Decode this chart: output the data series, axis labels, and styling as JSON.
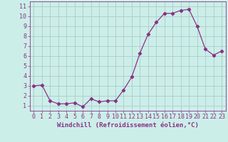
{
  "x": [
    0,
    1,
    2,
    3,
    4,
    5,
    6,
    7,
    8,
    9,
    10,
    11,
    12,
    13,
    14,
    15,
    16,
    17,
    18,
    19,
    20,
    21,
    22,
    23
  ],
  "y": [
    3.0,
    3.1,
    1.5,
    1.2,
    1.2,
    1.3,
    0.9,
    1.7,
    1.4,
    1.5,
    1.5,
    2.6,
    3.9,
    6.3,
    8.2,
    9.4,
    10.3,
    10.3,
    10.6,
    10.7,
    9.0,
    6.7,
    6.1,
    6.5
  ],
  "line_color": "#883388",
  "marker": "D",
  "marker_size": 2.2,
  "bg_color": "#cceee8",
  "grid_color": "#aacccc",
  "tick_color": "#883388",
  "label_color": "#883388",
  "xlabel": "Windchill (Refroidissement éolien,°C)",
  "ylim": [
    0.5,
    11.5
  ],
  "xlim": [
    -0.5,
    23.5
  ],
  "yticks": [
    1,
    2,
    3,
    4,
    5,
    6,
    7,
    8,
    9,
    10,
    11
  ],
  "xticks": [
    0,
    1,
    2,
    3,
    4,
    5,
    6,
    7,
    8,
    9,
    10,
    11,
    12,
    13,
    14,
    15,
    16,
    17,
    18,
    19,
    20,
    21,
    22,
    23
  ],
  "xlabel_fontsize": 6.5,
  "tick_fontsize": 6.0
}
